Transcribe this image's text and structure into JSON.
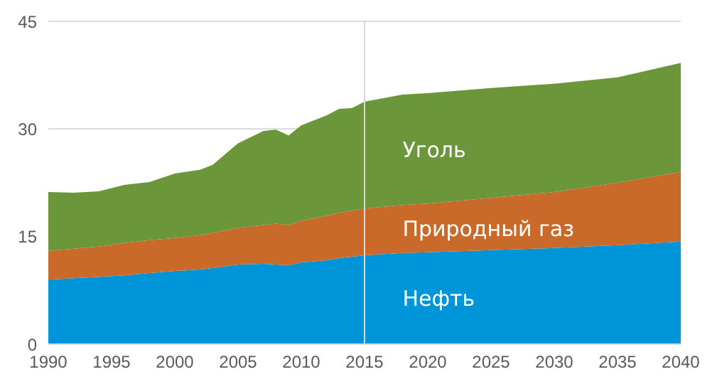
{
  "chart_data": {
    "type": "area",
    "stacked": true,
    "x": [
      1990,
      1992,
      1994,
      1996,
      1998,
      2000,
      2002,
      2003,
      2005,
      2007,
      2008,
      2009,
      2010,
      2012,
      2013,
      2014,
      2015,
      2018,
      2020,
      2025,
      2030,
      2035,
      2040
    ],
    "series": [
      {
        "name": "Нефть",
        "color": "#0094d8",
        "values": [
          9.0,
          9.2,
          9.4,
          9.6,
          9.9,
          10.2,
          10.4,
          10.6,
          11.1,
          11.2,
          11.1,
          11.0,
          11.4,
          11.7,
          12.0,
          12.2,
          12.4,
          12.7,
          12.8,
          13.1,
          13.4,
          13.8,
          14.3
        ]
      },
      {
        "name": "Природный газ",
        "color": "#c96a2b",
        "values": [
          4.0,
          4.1,
          4.2,
          4.5,
          4.6,
          4.6,
          4.8,
          4.9,
          5.1,
          5.4,
          5.7,
          5.6,
          5.8,
          6.2,
          6.3,
          6.4,
          6.5,
          6.7,
          6.8,
          7.3,
          7.8,
          8.7,
          9.7
        ]
      },
      {
        "name": "Уголь",
        "color": "#6b963a",
        "values": [
          8.2,
          7.8,
          7.7,
          8.1,
          8.1,
          9.0,
          9.1,
          9.5,
          11.8,
          13.1,
          13.1,
          12.5,
          13.3,
          14.0,
          14.5,
          14.3,
          14.9,
          15.4,
          15.4,
          15.3,
          15.1,
          14.7,
          15.2
        ]
      }
    ],
    "xlim": [
      1990,
      2040
    ],
    "xticks": [
      1990,
      1995,
      2000,
      2005,
      2010,
      2015,
      2020,
      2025,
      2030,
      2035,
      2040
    ],
    "ylim": [
      0,
      45
    ],
    "yticks": [
      0,
      15,
      30,
      45
    ],
    "grid": "y",
    "ref_lines": [
      {
        "axis": "x",
        "value": 2015,
        "color": "#d9d9d9"
      }
    ]
  }
}
